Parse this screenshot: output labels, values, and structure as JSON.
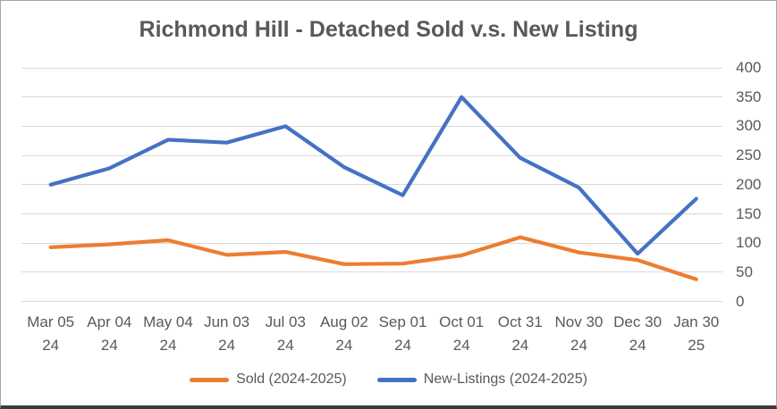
{
  "window": {
    "background": "#ffffff",
    "border_color": "#a6a6a6",
    "bottom_edge_color": "#3b3b3b"
  },
  "chart_data": {
    "type": "line",
    "title": "Richmond Hill - Detached Sold v.s. New Listing",
    "title_color": "#595959",
    "grid": true,
    "gridline_color": "#d9d9d9",
    "axis_text_color": "#595959",
    "legend_position": "bottom",
    "y_axis": {
      "side": "right",
      "min": 0,
      "max": 400,
      "step": 50,
      "tick_labels": [
        "0",
        "50",
        "100",
        "150",
        "200",
        "250",
        "300",
        "350",
        "400"
      ]
    },
    "categories": [
      [
        "Mar 05",
        "24"
      ],
      [
        "Apr 04",
        "24"
      ],
      [
        "May 04",
        "24"
      ],
      [
        "Jun 03",
        "24"
      ],
      [
        "Jul 03",
        "24"
      ],
      [
        "Aug 02",
        "24"
      ],
      [
        "Sep 01",
        "24"
      ],
      [
        "Oct 01",
        "24"
      ],
      [
        "Oct 31",
        "24"
      ],
      [
        "Nov 30",
        "24"
      ],
      [
        "Dec 30",
        "24"
      ],
      [
        "Jan 30",
        "25"
      ]
    ],
    "series": [
      {
        "name": "Sold (2024-2025)",
        "key": "sold",
        "color": "#ED7D31",
        "values": [
          93,
          98,
          105,
          80,
          85,
          64,
          65,
          79,
          110,
          84,
          71,
          38
        ]
      },
      {
        "name": "New-Listings (2024-2025)",
        "key": "new-listings",
        "color": "#4472C4",
        "values": [
          200,
          228,
          277,
          272,
          300,
          230,
          182,
          350,
          246,
          195,
          82,
          176
        ]
      }
    ]
  }
}
